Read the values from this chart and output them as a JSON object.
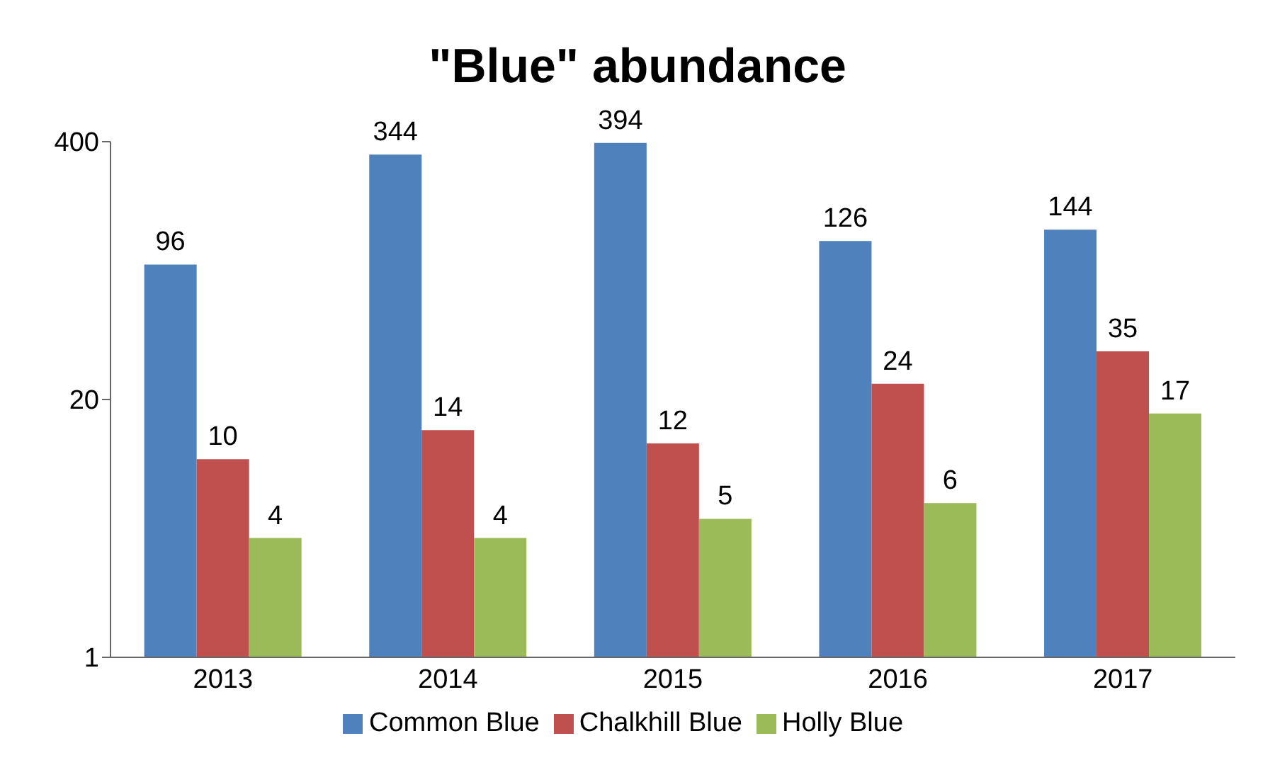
{
  "chart_data": {
    "type": "bar",
    "title": "\"Blue\" abundance",
    "categories": [
      "2013",
      "2014",
      "2015",
      "2016",
      "2017"
    ],
    "series": [
      {
        "name": "Common Blue",
        "color": "#4f81bd",
        "values": [
          96,
          344,
          394,
          126,
          144
        ]
      },
      {
        "name": "Chalkhill Blue",
        "color": "#c0504d",
        "values": [
          10,
          14,
          12,
          24,
          35
        ]
      },
      {
        "name": "Holly Blue",
        "color": "#9bbb59",
        "values": [
          4,
          4,
          5,
          6,
          17
        ]
      }
    ],
    "log": "y",
    "ylim": [
      1,
      400
    ],
    "yticks": [
      1,
      20,
      400
    ],
    "grid": false,
    "legend": "bottom",
    "data_labels": true
  }
}
